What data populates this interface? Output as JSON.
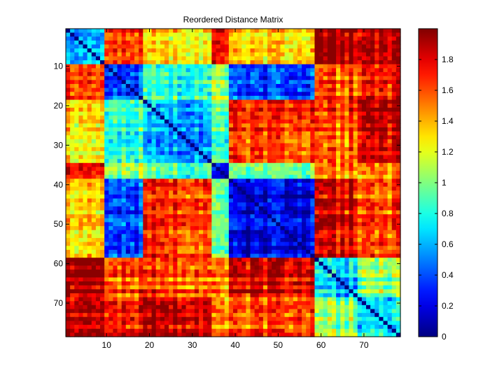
{
  "chart_data": {
    "type": "heatmap",
    "title": "Reordered Distance Matrix",
    "xlabel": "",
    "ylabel": "",
    "size": 78,
    "x_range": [
      1,
      78
    ],
    "y_range": [
      1,
      78
    ],
    "x_ticks": [
      10,
      20,
      30,
      40,
      50,
      60,
      70
    ],
    "y_ticks": [
      10,
      20,
      30,
      40,
      50,
      60,
      70
    ],
    "x_tick_labels": [
      "10",
      "20",
      "30",
      "40",
      "50",
      "60",
      "70"
    ],
    "y_tick_labels": [
      "10",
      "20",
      "30",
      "40",
      "50",
      "60",
      "70"
    ],
    "y_direction": "top-to-bottom",
    "colormap": "jet",
    "clim": [
      0,
      2
    ],
    "colorbar": {
      "ticks": [
        0,
        0.2,
        0.4,
        0.6,
        0.8,
        1,
        1.2,
        1.4,
        1.6,
        1.8
      ],
      "tick_labels": [
        "0",
        "0.2",
        "0.4",
        "0.6",
        "0.8",
        "1",
        "1.2",
        "1.4",
        "1.6",
        "1.8"
      ],
      "placement": "right"
    },
    "blocks": [
      {
        "range": [
          1,
          9
        ],
        "diag": 0.55
      },
      {
        "range": [
          10,
          18
        ],
        "diag": 0.35
      },
      {
        "range": [
          19,
          34
        ],
        "diag": 0.55
      },
      {
        "range": [
          35,
          38
        ],
        "diag": 0.35
      },
      {
        "range": [
          39,
          58
        ],
        "diag": 0.2
      },
      {
        "range": [
          59,
          68
        ],
        "diag": 0.65
      },
      {
        "range": [
          69,
          78
        ],
        "diag": 0.7
      }
    ],
    "block_means": [
      [
        0.55,
        1.6,
        1.25,
        1.75,
        1.3,
        1.9,
        1.85
      ],
      [
        1.6,
        0.35,
        0.8,
        1.05,
        0.35,
        1.55,
        1.7
      ],
      [
        1.25,
        0.8,
        0.55,
        0.9,
        1.65,
        1.55,
        1.85
      ],
      [
        1.75,
        1.05,
        0.9,
        0.35,
        1.0,
        1.5,
        1.5
      ],
      [
        1.3,
        0.35,
        1.65,
        1.0,
        0.2,
        1.8,
        1.6
      ],
      [
        1.9,
        1.55,
        1.55,
        1.5,
        1.8,
        0.65,
        1.0
      ],
      [
        1.85,
        1.7,
        1.85,
        1.5,
        1.6,
        1.0,
        0.7
      ]
    ]
  }
}
